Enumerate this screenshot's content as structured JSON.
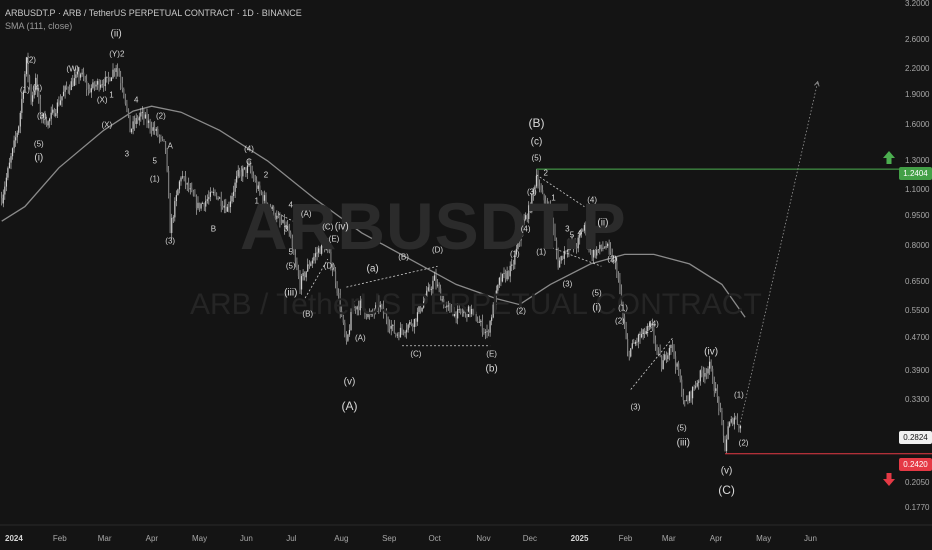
{
  "header": {
    "title": "ARBUSDT.P · ARB / TetherUS PERPETUAL CONTRACT · 1D · BINANCE",
    "indicator": "SMA (111, close)"
  },
  "watermark": {
    "symbol": "ARBUSDT.P",
    "name": "ARB / TetherUS PERPETUAL CONTRACT"
  },
  "colors": {
    "background": "#141414",
    "candles": "#d0d0d0",
    "sma": "#8a8a8a",
    "green": "#4caf50",
    "red": "#e53945"
  },
  "price_boxes": {
    "target": "1.2404",
    "current": "0.2824",
    "stop": "0.2420"
  },
  "chart_data": {
    "type": "candlestick",
    "y_scale": "log",
    "ylim": [
      0.1655,
      3.2
    ],
    "y_ticks": [
      "3.2000",
      "2.6000",
      "2.2000",
      "1.9000",
      "1.6000",
      "1.3000",
      "1.1000",
      "0.9500",
      "0.8000",
      "0.6500",
      "0.5500",
      "0.4700",
      "0.3900",
      "0.3300",
      "0.2050",
      "0.1770"
    ],
    "x_ticks": [
      "2024",
      "Feb",
      "Mar",
      "Apr",
      "May",
      "Jun",
      "Jul",
      "Aug",
      "Sep",
      "Oct",
      "Nov",
      "Dec",
      "2025",
      "Feb",
      "Mar",
      "Apr",
      "May",
      "Jun"
    ],
    "x_tick_dates": [
      "2024-01-01",
      "2024-02-01",
      "2024-03-01",
      "2024-04-01",
      "2024-05-01",
      "2024-06-01",
      "2024-07-01",
      "2024-08-01",
      "2024-09-01",
      "2024-10-01",
      "2024-11-01",
      "2024-12-01",
      "2025-01-01",
      "2025-02-01",
      "2025-03-01",
      "2025-04-01",
      "2025-05-01",
      "2025-06-01"
    ],
    "price_path": [
      [
        "2023-12-26",
        1.05
      ],
      [
        "2024-01-06",
        1.6
      ],
      [
        "2024-01-11",
        2.3
      ],
      [
        "2024-01-14",
        1.85
      ],
      [
        "2024-01-17",
        2.05
      ],
      [
        "2024-01-20",
        1.7
      ],
      [
        "2024-01-25",
        1.62
      ],
      [
        "2024-02-05",
        1.95
      ],
      [
        "2024-02-15",
        2.15
      ],
      [
        "2024-02-20",
        1.95
      ],
      [
        "2024-02-28",
        2.05
      ],
      [
        "2024-03-03",
        2.05
      ],
      [
        "2024-03-09",
        2.25
      ],
      [
        "2024-03-14",
        1.95
      ],
      [
        "2024-03-18",
        1.55
      ],
      [
        "2024-03-25",
        1.7
      ],
      [
        "2024-03-28",
        1.65
      ],
      [
        "2024-04-03",
        1.55
      ],
      [
        "2024-04-10",
        1.4
      ],
      [
        "2024-04-13",
        0.88
      ],
      [
        "2024-04-20",
        1.2
      ],
      [
        "2024-05-01",
        1.0
      ],
      [
        "2024-05-12",
        1.08
      ],
      [
        "2024-05-20",
        0.99
      ],
      [
        "2024-05-27",
        1.2
      ],
      [
        "2024-06-03",
        1.25
      ],
      [
        "2024-06-09",
        1.1
      ],
      [
        "2024-06-18",
        0.98
      ],
      [
        "2024-06-22",
        0.92
      ],
      [
        "2024-06-28",
        0.88
      ],
      [
        "2024-07-06",
        0.64
      ],
      [
        "2024-07-12",
        0.72
      ],
      [
        "2024-07-18",
        0.78
      ],
      [
        "2024-07-23",
        0.8
      ],
      [
        "2024-07-29",
        0.66
      ],
      [
        "2024-08-05",
        0.45
      ],
      [
        "2024-08-09",
        0.56
      ],
      [
        "2024-08-14",
        0.57
      ],
      [
        "2024-08-20",
        0.53
      ],
      [
        "2024-08-26",
        0.57
      ],
      [
        "2024-09-06",
        0.48
      ],
      [
        "2024-09-18",
        0.52
      ],
      [
        "2024-10-01",
        0.66
      ],
      [
        "2024-10-08",
        0.56
      ],
      [
        "2024-10-16",
        0.54
      ],
      [
        "2024-10-25",
        0.55
      ],
      [
        "2024-11-04",
        0.48
      ],
      [
        "2024-11-12",
        0.65
      ],
      [
        "2024-11-20",
        0.7
      ],
      [
        "2024-11-28",
        0.92
      ],
      [
        "2024-12-02",
        1.0
      ],
      [
        "2024-12-06",
        1.2
      ],
      [
        "2024-12-10",
        1.05
      ],
      [
        "2024-12-15",
        0.98
      ],
      [
        "2024-12-20",
        0.72
      ],
      [
        "2024-12-26",
        0.8
      ],
      [
        "2025-01-01",
        0.8
      ],
      [
        "2025-01-06",
        0.9
      ],
      [
        "2025-01-10",
        0.76
      ],
      [
        "2025-01-20",
        0.8
      ],
      [
        "2025-01-27",
        0.7
      ],
      [
        "2025-02-03",
        0.43
      ],
      [
        "2025-02-10",
        0.47
      ],
      [
        "2025-02-18",
        0.5
      ],
      [
        "2025-02-25",
        0.4
      ],
      [
        "2025-03-03",
        0.46
      ],
      [
        "2025-03-08",
        0.38
      ],
      [
        "2025-03-12",
        0.32
      ],
      [
        "2025-03-22",
        0.38
      ],
      [
        "2025-03-28",
        0.4
      ],
      [
        "2025-04-03",
        0.32
      ],
      [
        "2025-04-07",
        0.25
      ],
      [
        "2025-04-09",
        0.28
      ],
      [
        "2025-04-13",
        0.3
      ],
      [
        "2025-04-17",
        0.2824
      ]
    ],
    "sma_path": [
      [
        "2023-12-26",
        0.92
      ],
      [
        "2024-01-10",
        1.0
      ],
      [
        "2024-02-01",
        1.25
      ],
      [
        "2024-03-01",
        1.55
      ],
      [
        "2024-03-20",
        1.73
      ],
      [
        "2024-04-01",
        1.78
      ],
      [
        "2024-04-20",
        1.72
      ],
      [
        "2024-05-15",
        1.55
      ],
      [
        "2024-06-15",
        1.3
      ],
      [
        "2024-07-15",
        1.05
      ],
      [
        "2024-08-15",
        0.86
      ],
      [
        "2024-09-15",
        0.74
      ],
      [
        "2024-10-15",
        0.64
      ],
      [
        "2024-11-10",
        0.59
      ],
      [
        "2024-11-25",
        0.57
      ],
      [
        "2024-12-15",
        0.64
      ],
      [
        "2025-01-10",
        0.72
      ],
      [
        "2025-02-01",
        0.76
      ],
      [
        "2025-02-20",
        0.76
      ],
      [
        "2025-03-15",
        0.72
      ],
      [
        "2025-04-05",
        0.64
      ],
      [
        "2025-04-20",
        0.53
      ]
    ],
    "horizontal_levels": [
      {
        "price": 1.2404,
        "color": "green",
        "from": "2024-12-06"
      },
      {
        "price": 0.242,
        "color": "red",
        "from": "2025-04-07"
      }
    ],
    "projection": {
      "from": [
        "2025-04-17",
        0.29
      ],
      "to": [
        "2025-06-06",
        2.05
      ]
    },
    "wave_labels": [
      {
        "t": "(ii)",
        "d": "2024-03-09",
        "p": 2.7,
        "s": "mid"
      },
      {
        "t": "(Y)",
        "d": "2024-03-08",
        "p": 2.4
      },
      {
        "t": "2",
        "d": "2024-03-13",
        "p": 2.4
      },
      {
        "t": "(2)",
        "d": "2024-01-14",
        "p": 2.32
      },
      {
        "t": "(W)",
        "d": "2024-02-10",
        "p": 2.2
      },
      {
        "t": "(1)",
        "d": "2024-01-10",
        "p": 1.95
      },
      {
        "t": "(4)",
        "d": "2024-01-18",
        "p": 1.98
      },
      {
        "t": "(3)",
        "d": "2024-01-21",
        "p": 1.68
      },
      {
        "t": "(5)",
        "d": "2024-01-19",
        "p": 1.43
      },
      {
        "t": "(i)",
        "d": "2024-01-19",
        "p": 1.32,
        "s": "mid"
      },
      {
        "t": "(X)",
        "d": "2024-02-29",
        "p": 1.84
      },
      {
        "t": "1",
        "d": "2024-03-06",
        "p": 1.9
      },
      {
        "t": "(X)",
        "d": "2024-03-03",
        "p": 1.6
      },
      {
        "t": "4",
        "d": "2024-03-22",
        "p": 1.84
      },
      {
        "t": "(2)",
        "d": "2024-04-07",
        "p": 1.68
      },
      {
        "t": "3",
        "d": "2024-03-16",
        "p": 1.35
      },
      {
        "t": "5",
        "d": "2024-04-03",
        "p": 1.3
      },
      {
        "t": "(1)",
        "d": "2024-04-03",
        "p": 1.17
      },
      {
        "t": "A",
        "d": "2024-04-13",
        "p": 1.42
      },
      {
        "t": "(3)",
        "d": "2024-04-13",
        "p": 0.82
      },
      {
        "t": "B",
        "d": "2024-05-11",
        "p": 0.88
      },
      {
        "t": "(4)",
        "d": "2024-06-03",
        "p": 1.39
      },
      {
        "t": "C",
        "d": "2024-06-03",
        "p": 1.29
      },
      {
        "t": "2",
        "d": "2024-06-14",
        "p": 1.2
      },
      {
        "t": "1",
        "d": "2024-06-08",
        "p": 1.03
      },
      {
        "t": "4",
        "d": "2024-06-30",
        "p": 1.01
      },
      {
        "t": "3",
        "d": "2024-06-27",
        "p": 0.88
      },
      {
        "t": "(A)",
        "d": "2024-07-10",
        "p": 0.96
      },
      {
        "t": "(C)",
        "d": "2024-07-24",
        "p": 0.89
      },
      {
        "t": "(iv)",
        "d": "2024-08-02",
        "p": 0.89,
        "s": "mid"
      },
      {
        "t": "(E)",
        "d": "2024-07-28",
        "p": 0.83
      },
      {
        "t": "(D)",
        "d": "2024-07-25",
        "p": 0.71
      },
      {
        "t": "5",
        "d": "2024-06-30",
        "p": 0.77
      },
      {
        "t": "(5)",
        "d": "2024-06-30",
        "p": 0.71
      },
      {
        "t": "(iii)",
        "d": "2024-06-30",
        "p": 0.61,
        "s": "mid"
      },
      {
        "t": "(B)",
        "d": "2024-07-11",
        "p": 0.54
      },
      {
        "t": "(a)",
        "d": "2024-08-22",
        "p": 0.7,
        "s": "mid"
      },
      {
        "t": "(B)",
        "d": "2024-09-11",
        "p": 0.75
      },
      {
        "t": "(D)",
        "d": "2024-10-03",
        "p": 0.78
      },
      {
        "t": "(A)",
        "d": "2024-08-14",
        "p": 0.47
      },
      {
        "t": "(C)",
        "d": "2024-09-19",
        "p": 0.43
      },
      {
        "t": "(E)",
        "d": "2024-11-07",
        "p": 0.43
      },
      {
        "t": "(v)",
        "d": "2024-08-07",
        "p": 0.366,
        "s": "mid"
      },
      {
        "t": "(A)",
        "d": "2024-08-07",
        "p": 0.318,
        "s": "big"
      },
      {
        "t": "(b)",
        "d": "2024-11-07",
        "p": 0.393,
        "s": "mid"
      },
      {
        "t": "(B)",
        "d": "2024-12-06",
        "p": 1.62,
        "s": "big"
      },
      {
        "t": "(c)",
        "d": "2024-12-06",
        "p": 1.45,
        "s": "mid"
      },
      {
        "t": "(5)",
        "d": "2024-12-06",
        "p": 1.32
      },
      {
        "t": "(3)",
        "d": "2024-12-03",
        "p": 1.09
      },
      {
        "t": "(1)",
        "d": "2024-11-22",
        "p": 0.76
      },
      {
        "t": "(4)",
        "d": "2024-11-29",
        "p": 0.88
      },
      {
        "t": "(2)",
        "d": "2024-11-26",
        "p": 0.55
      },
      {
        "t": "2",
        "d": "2024-12-12",
        "p": 1.21
      },
      {
        "t": "1",
        "d": "2024-12-17",
        "p": 1.05
      },
      {
        "t": "(1)",
        "d": "2024-12-09",
        "p": 0.77
      },
      {
        "t": "3",
        "d": "2024-12-26",
        "p": 0.88
      },
      {
        "t": "5",
        "d": "2024-12-29",
        "p": 0.85
      },
      {
        "t": "(3)",
        "d": "2024-12-26",
        "p": 0.64
      },
      {
        "t": "4",
        "d": "2025-01-03",
        "p": 0.86
      },
      {
        "t": "(4)",
        "d": "2025-01-11",
        "p": 1.04
      },
      {
        "t": "(ii)",
        "d": "2025-01-18",
        "p": 0.91,
        "s": "mid"
      },
      {
        "t": "(2)",
        "d": "2025-01-24",
        "p": 0.74
      },
      {
        "t": "(5)",
        "d": "2025-01-14",
        "p": 0.61
      },
      {
        "t": "(i)",
        "d": "2025-01-14",
        "p": 0.56,
        "s": "mid"
      },
      {
        "t": "(1)",
        "d": "2025-01-31",
        "p": 0.56
      },
      {
        "t": "(2)",
        "d": "2025-01-29",
        "p": 0.52
      },
      {
        "t": "(4)",
        "d": "2025-02-20",
        "p": 0.51
      },
      {
        "t": "(3)",
        "d": "2025-02-08",
        "p": 0.317
      },
      {
        "t": "(5)",
        "d": "2025-03-10",
        "p": 0.281
      },
      {
        "t": "(iii)",
        "d": "2025-03-11",
        "p": 0.258,
        "s": "mid"
      },
      {
        "t": "(iv)",
        "d": "2025-03-29",
        "p": 0.434,
        "s": "mid"
      },
      {
        "t": "(1)",
        "d": "2025-04-16",
        "p": 0.339
      },
      {
        "t": "(2)",
        "d": "2025-04-19",
        "p": 0.258
      },
      {
        "t": "(v)",
        "d": "2025-04-08",
        "p": 0.219,
        "s": "mid"
      },
      {
        "t": "(C)",
        "d": "2025-04-08",
        "p": 0.197,
        "s": "big"
      }
    ],
    "dashed_lines": [
      [
        [
          "2024-06-22",
          0.96
        ],
        [
          "2024-07-22",
          0.84
        ]
      ],
      [
        [
          "2024-07-08",
          0.58
        ],
        [
          "2024-07-24",
          0.74
        ]
      ],
      [
        [
          "2024-08-05",
          0.63
        ],
        [
          "2024-10-03",
          0.71
        ]
      ],
      [
        [
          "2024-09-10",
          0.45
        ],
        [
          "2024-11-06",
          0.45
        ]
      ],
      [
        [
          "2024-12-06",
          1.2
        ],
        [
          "2025-01-06",
          1.0
        ]
      ],
      [
        [
          "2024-12-16",
          0.79
        ],
        [
          "2025-01-17",
          0.71
        ]
      ],
      [
        [
          "2025-02-10",
          0.48
        ],
        [
          "2025-02-20",
          0.49
        ]
      ],
      [
        [
          "2025-02-05",
          0.35
        ],
        [
          "2025-03-04",
          0.47
        ]
      ]
    ]
  }
}
